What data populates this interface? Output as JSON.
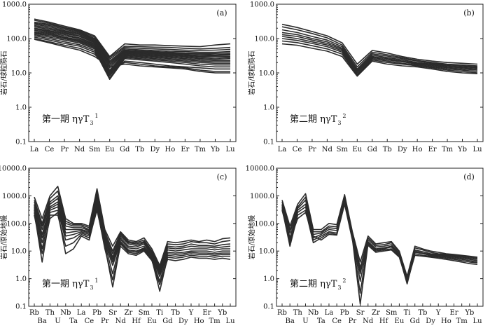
{
  "chart_data": [
    {
      "id": "a",
      "type": "line",
      "panel_label": "(a)",
      "annotation": "第一期 ηγT",
      "annotation_sub": "3",
      "annotation_sup": "1",
      "ylabel": "岩石/球粒陨石",
      "yscale": "log",
      "ylim": [
        0.1,
        1000.0
      ],
      "ytick_labels": [
        "0.1",
        "1.0",
        "10.0",
        "100.0",
        "1000.0"
      ],
      "categories": [
        "La",
        "Ce",
        "Pr",
        "Nd",
        "Sm",
        "Eu",
        "Gd",
        "Tb",
        "Dy",
        "Ho",
        "Er",
        "Tm",
        "Yb",
        "Lu"
      ],
      "series": [
        {
          "name": "s1",
          "values": [
            370,
            300,
            230,
            180,
            120,
            30,
            70,
            65,
            65,
            62,
            60,
            58,
            65,
            70
          ]
        },
        {
          "name": "s2",
          "values": [
            340,
            280,
            210,
            170,
            110,
            28,
            60,
            58,
            56,
            55,
            52,
            50,
            52,
            55
          ]
        },
        {
          "name": "s3",
          "values": [
            300,
            260,
            200,
            160,
            100,
            25,
            55,
            52,
            50,
            48,
            46,
            45,
            46,
            48
          ]
        },
        {
          "name": "s4",
          "values": [
            280,
            240,
            185,
            150,
            95,
            22,
            50,
            47,
            45,
            43,
            42,
            40,
            40,
            42
          ]
        },
        {
          "name": "s5",
          "values": [
            260,
            220,
            170,
            140,
            90,
            20,
            46,
            44,
            42,
            40,
            38,
            37,
            37,
            38
          ]
        },
        {
          "name": "s6",
          "values": [
            240,
            200,
            160,
            130,
            85,
            18,
            44,
            42,
            40,
            38,
            36,
            35,
            34,
            35
          ]
        },
        {
          "name": "s7",
          "values": [
            220,
            185,
            150,
            120,
            80,
            16,
            42,
            40,
            38,
            36,
            34,
            32,
            32,
            33
          ]
        },
        {
          "name": "s8",
          "values": [
            200,
            170,
            140,
            115,
            75,
            14,
            40,
            38,
            36,
            34,
            32,
            30,
            30,
            30
          ]
        },
        {
          "name": "s9",
          "values": [
            190,
            160,
            130,
            105,
            70,
            12,
            38,
            36,
            34,
            32,
            30,
            28,
            27,
            28
          ]
        },
        {
          "name": "s10",
          "values": [
            175,
            150,
            120,
            100,
            66,
            11,
            36,
            34,
            32,
            30,
            28,
            26,
            25,
            26
          ]
        },
        {
          "name": "s11",
          "values": [
            160,
            140,
            110,
            92,
            62,
            10,
            34,
            32,
            30,
            28,
            26,
            24,
            23,
            23
          ]
        },
        {
          "name": "s12",
          "values": [
            150,
            130,
            105,
            86,
            58,
            9,
            32,
            30,
            28,
            26,
            24,
            22,
            21,
            21
          ]
        },
        {
          "name": "s13",
          "values": [
            140,
            120,
            98,
            80,
            54,
            8,
            30,
            28,
            26,
            24,
            22,
            20,
            19,
            19
          ]
        },
        {
          "name": "s14",
          "values": [
            130,
            110,
            90,
            74,
            50,
            7,
            28,
            26,
            24,
            22,
            20,
            18,
            17,
            17
          ]
        },
        {
          "name": "s15",
          "values": [
            120,
            100,
            80,
            66,
            45,
            6.5,
            26,
            24,
            22,
            20,
            18,
            16,
            15,
            15
          ]
        },
        {
          "name": "s16",
          "values": [
            110,
            90,
            72,
            60,
            40,
            9,
            22,
            20,
            18,
            16,
            15,
            14,
            13,
            13
          ]
        },
        {
          "name": "s17",
          "values": [
            100,
            80,
            64,
            52,
            35,
            12,
            20,
            18,
            16,
            15,
            14,
            12,
            11,
            11
          ]
        },
        {
          "name": "s18",
          "values": [
            95,
            75,
            58,
            46,
            30,
            15,
            18,
            16,
            15,
            14,
            13,
            11,
            10,
            10
          ]
        }
      ]
    },
    {
      "id": "b",
      "type": "line",
      "panel_label": "(b)",
      "annotation": "第二期 ηγT",
      "annotation_sub": "3",
      "annotation_sup": "2",
      "ylabel": "岩石/球粒陨石",
      "yscale": "log",
      "ylim": [
        0.1,
        1000.0
      ],
      "ytick_labels": [
        "0.1",
        "1.0",
        "10.0",
        "100.0",
        "1000.0"
      ],
      "categories": [
        "La",
        "Ce",
        "Pr",
        "Nd",
        "Sm",
        "Eu",
        "Gd",
        "Tb",
        "Dy",
        "Ho",
        "Er",
        "Tm",
        "Yb",
        "Lu"
      ],
      "series": [
        {
          "name": "s1",
          "values": [
            260,
            210,
            160,
            120,
            75,
            18,
            45,
            38,
            30,
            25,
            22,
            20,
            19,
            18
          ]
        },
        {
          "name": "s2",
          "values": [
            220,
            180,
            140,
            105,
            65,
            15,
            40,
            34,
            28,
            23,
            20,
            18,
            17,
            16
          ]
        },
        {
          "name": "s3",
          "values": [
            180,
            150,
            115,
            90,
            58,
            13,
            36,
            31,
            26,
            22,
            19,
            17,
            16,
            15
          ]
        },
        {
          "name": "s4",
          "values": [
            150,
            130,
            100,
            80,
            52,
            12,
            33,
            28,
            24,
            20,
            18,
            16,
            15,
            14
          ]
        },
        {
          "name": "s5",
          "values": [
            130,
            115,
            90,
            72,
            48,
            11,
            30,
            26,
            22,
            19,
            17,
            15,
            14,
            13
          ]
        },
        {
          "name": "s6",
          "values": [
            115,
            100,
            80,
            65,
            44,
            10,
            28,
            24,
            21,
            18,
            16,
            14,
            13,
            12
          ]
        },
        {
          "name": "s7",
          "values": [
            100,
            88,
            72,
            58,
            40,
            9,
            26,
            22,
            19,
            17,
            15,
            13,
            12,
            11
          ]
        },
        {
          "name": "s8",
          "values": [
            85,
            76,
            62,
            50,
            35,
            8.5,
            24,
            20,
            18,
            16,
            14,
            12,
            11,
            10
          ]
        },
        {
          "name": "s9",
          "values": [
            70,
            64,
            52,
            43,
            30,
            8,
            22,
            18,
            16,
            15,
            13,
            11,
            10,
            9.5
          ]
        }
      ]
    },
    {
      "id": "c",
      "type": "line",
      "panel_label": "(c)",
      "annotation": "第一期 ηγT",
      "annotation_sub": "3",
      "annotation_sup": "1",
      "ylabel": "岩石/原始地幔",
      "yscale": "log",
      "ylim": [
        0.1,
        10000.0
      ],
      "ytick_labels": [
        "0.1",
        "1.0",
        "10.0",
        "100.0",
        "1000.0",
        "10000.0"
      ],
      "categories": [
        "Rb",
        "Ba",
        "Th",
        "U",
        "Nb",
        "Ta",
        "La",
        "Ce",
        "Pb",
        "Pr",
        "Sr",
        "Nd",
        "Zr",
        "Hf",
        "Sm",
        "Eu",
        "Ti",
        "Gd",
        "Tb",
        "Dy",
        "Y",
        "Ho",
        "Er",
        "Tm",
        "Yb",
        "Lu"
      ],
      "series": [
        {
          "name": "s1",
          "values": [
            900,
            150,
            1000,
            2200,
            150,
            100,
            100,
            80,
            1800,
            60,
            15,
            50,
            25,
            22,
            30,
            12,
            3,
            22,
            20,
            22,
            25,
            22,
            25,
            22,
            28,
            30
          ]
        },
        {
          "name": "s2",
          "values": [
            700,
            100,
            800,
            1500,
            120,
            90,
            90,
            70,
            1400,
            50,
            10,
            45,
            22,
            20,
            25,
            10,
            2.5,
            18,
            17,
            18,
            22,
            20,
            20,
            18,
            22,
            24
          ]
        },
        {
          "name": "s3",
          "values": [
            600,
            80,
            600,
            1000,
            100,
            80,
            80,
            60,
            1100,
            40,
            8,
            40,
            20,
            18,
            22,
            9,
            2.2,
            15,
            14,
            15,
            18,
            16,
            16,
            15,
            17,
            18
          ]
        },
        {
          "name": "s4",
          "values": [
            500,
            60,
            500,
            800,
            80,
            70,
            70,
            55,
            900,
            35,
            6,
            35,
            18,
            16,
            20,
            8,
            2,
            13,
            12,
            13,
            15,
            14,
            14,
            13,
            14,
            15
          ]
        },
        {
          "name": "s5",
          "values": [
            450,
            40,
            400,
            600,
            60,
            60,
            60,
            50,
            700,
            30,
            5,
            30,
            15,
            14,
            18,
            7,
            1.8,
            11,
            10,
            11,
            12,
            12,
            12,
            11,
            12,
            12
          ]
        },
        {
          "name": "s6",
          "values": [
            400,
            30,
            350,
            500,
            45,
            50,
            55,
            45,
            600,
            25,
            4,
            26,
            13,
            12,
            15,
            6.5,
            1.5,
            9,
            8.5,
            9,
            10,
            10,
            10,
            9,
            10,
            10
          ]
        },
        {
          "name": "s7",
          "values": [
            350,
            20,
            300,
            400,
            35,
            40,
            50,
            40,
            500,
            20,
            3,
            22,
            11,
            10,
            13,
            6,
            1.2,
            8,
            7.5,
            8,
            9,
            8.5,
            8.5,
            8,
            8.5,
            8.5
          ]
        },
        {
          "name": "s8",
          "values": [
            300,
            12,
            250,
            300,
            25,
            30,
            45,
            35,
            400,
            18,
            1.5,
            20,
            10,
            9,
            12,
            5.5,
            0.8,
            7,
            6.5,
            7,
            8,
            7.5,
            7.5,
            7,
            7.5,
            7.5
          ]
        },
        {
          "name": "s9",
          "values": [
            250,
            4,
            200,
            200,
            15,
            20,
            40,
            30,
            300,
            15,
            0.5,
            18,
            9,
            8,
            11,
            5,
            0.35,
            6,
            5.5,
            6,
            7,
            6.5,
            6.5,
            6,
            6.5,
            6.5
          ]
        },
        {
          "name": "s10",
          "values": [
            200,
            8,
            150,
            250,
            8,
            12,
            35,
            25,
            350,
            12,
            0.9,
            15,
            8,
            7,
            10,
            4.5,
            0.6,
            5,
            4.5,
            5,
            6,
            5.5,
            5.5,
            5,
            5.5,
            5
          ]
        }
      ]
    },
    {
      "id": "d",
      "type": "line",
      "panel_label": "(d)",
      "annotation": "第二期 ηγT",
      "annotation_sub": "3",
      "annotation_sup": "2",
      "ylabel": "岩石/原始地幔",
      "yscale": "log",
      "ylim": [
        0.1,
        10000.0
      ],
      "ytick_labels": [
        "0.1",
        "1.0",
        "10.0",
        "100.0",
        "1000.0",
        "10000.0"
      ],
      "categories": [
        "Rb",
        "Ba",
        "Th",
        "U",
        "Nb",
        "Ta",
        "La",
        "Ce",
        "Pb",
        "Pr",
        "Sr",
        "Nd",
        "Zr",
        "Hf",
        "Sm",
        "Eu",
        "Ti",
        "Gd",
        "Tb",
        "Dy",
        "Y",
        "Ho",
        "Er",
        "Tm",
        "Yb",
        "Lu"
      ],
      "series": [
        {
          "name": "s1",
          "values": [
            700,
            80,
            500,
            1200,
            60,
            60,
            100,
            90,
            1100,
            50,
            4,
            35,
            18,
            20,
            22,
            10,
            1.2,
            15,
            12,
            10,
            9,
            8,
            7.5,
            7,
            6.5,
            6
          ]
        },
        {
          "name": "s2",
          "values": [
            600,
            60,
            400,
            900,
            50,
            50,
            80,
            75,
            1000,
            45,
            2.5,
            30,
            16,
            17,
            20,
            9,
            1,
            13,
            11,
            9,
            8,
            7.5,
            7,
            6.5,
            6,
            5.5
          ]
        },
        {
          "name": "s3",
          "values": [
            500,
            45,
            350,
            700,
            40,
            45,
            70,
            65,
            900,
            40,
            1.5,
            26,
            14,
            15,
            17,
            8,
            0.9,
            11,
            9.5,
            8,
            7.5,
            7,
            6.5,
            6,
            5.5,
            5
          ]
        },
        {
          "name": "s4",
          "values": [
            450,
            30,
            300,
            500,
            30,
            40,
            60,
            55,
            800,
            35,
            0.8,
            22,
            12,
            13,
            15,
            7.5,
            0.8,
            10,
            8.5,
            7.5,
            7,
            6.5,
            6,
            5.5,
            5,
            4.5
          ]
        },
        {
          "name": "s5",
          "values": [
            400,
            20,
            250,
            400,
            25,
            35,
            50,
            45,
            700,
            30,
            0.3,
            20,
            11,
            12,
            14,
            7,
            0.7,
            9,
            8,
            7,
            6.5,
            6,
            5.5,
            5,
            4.5,
            4
          ]
        },
        {
          "name": "s6",
          "values": [
            350,
            15,
            200,
            300,
            20,
            30,
            45,
            40,
            600,
            28,
            0.12,
            18,
            10,
            11,
            12,
            6.5,
            0.65,
            8,
            7,
            6.5,
            6,
            5.5,
            5,
            4.5,
            4,
            3.8
          ]
        },
        {
          "name": "s7",
          "values": [
            300,
            25,
            150,
            250,
            35,
            25,
            40,
            38,
            500,
            25,
            2,
            16,
            9,
            10,
            11,
            6,
            0.75,
            7,
            6.5,
            6,
            5.5,
            5,
            4.5,
            4,
            3.5,
            3.3
          ]
        }
      ]
    }
  ]
}
